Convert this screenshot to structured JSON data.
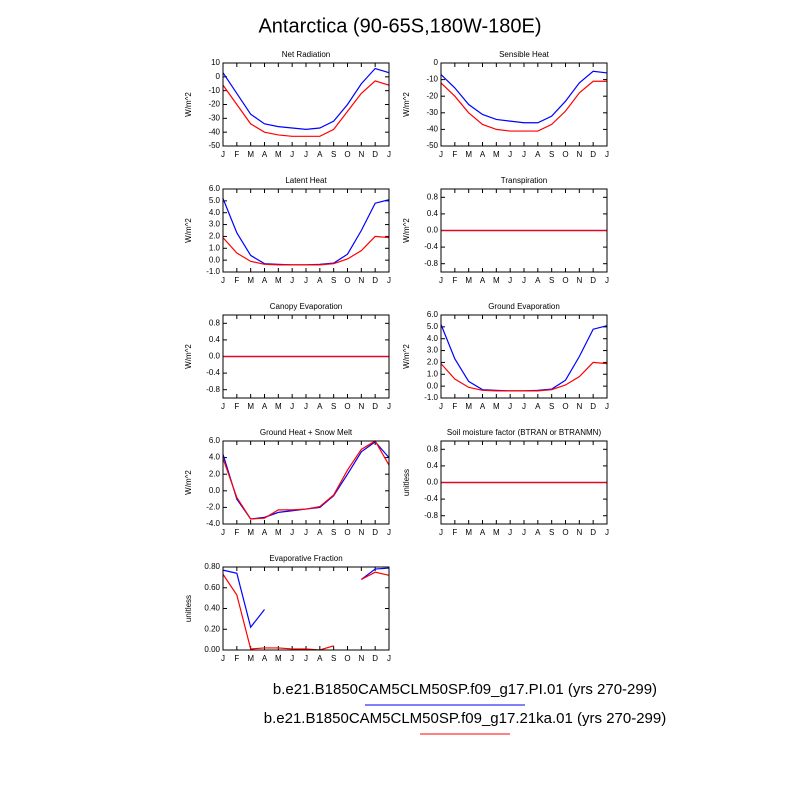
{
  "title": "Antarctica (90-65S,180W-180E)",
  "chart_data": [
    {
      "type": "line",
      "title": "Net Radiation",
      "ylabel": "W/m^2",
      "categories": [
        "J",
        "F",
        "M",
        "A",
        "M",
        "J",
        "J",
        "A",
        "S",
        "O",
        "N",
        "D",
        "J"
      ],
      "ylim": [
        -50,
        10
      ],
      "yticks": [
        10,
        0,
        -10,
        -20,
        -30,
        -40,
        -50
      ],
      "series": [
        {
          "name": "b.e21.B1850CAM5CLM50SP.f09_g17.PI.01 (yrs 270-299)",
          "color": "#0000ff",
          "values": [
            3,
            -12,
            -27,
            -34,
            -36,
            -37,
            -38,
            -37,
            -32,
            -20,
            -5,
            6,
            3
          ]
        },
        {
          "name": "b.e21.B1850CAM5CLM50SP.f09_g17.21ka.01 (yrs 270-299)",
          "color": "#ff0000",
          "values": [
            -6,
            -20,
            -34,
            -40,
            -42,
            -43,
            -43,
            -43,
            -38,
            -25,
            -12,
            -3,
            -6
          ]
        }
      ]
    },
    {
      "type": "line",
      "title": "Sensible Heat",
      "ylabel": "W/m^2",
      "categories": [
        "J",
        "F",
        "M",
        "A",
        "M",
        "J",
        "J",
        "A",
        "S",
        "O",
        "N",
        "D",
        "J"
      ],
      "ylim": [
        -50,
        0
      ],
      "yticks": [
        0,
        -10,
        -20,
        -30,
        -40,
        -50
      ],
      "series": [
        {
          "name": "b.e21.B1850CAM5CLM50SP.f09_g17.PI.01 (yrs 270-299)",
          "color": "#0000ff",
          "values": [
            -7,
            -15,
            -25,
            -31,
            -34,
            -35,
            -36,
            -36,
            -32,
            -23,
            -12,
            -5,
            -6
          ]
        },
        {
          "name": "b.e21.B1850CAM5CLM50SP.f09_g17.21ka.01 (yrs 270-299)",
          "color": "#ff0000",
          "values": [
            -12,
            -20,
            -30,
            -37,
            -40,
            -41,
            -41,
            -41,
            -37,
            -29,
            -18,
            -11,
            -11
          ]
        }
      ]
    },
    {
      "type": "line",
      "title": "Latent Heat",
      "ylabel": "W/m^2",
      "categories": [
        "J",
        "F",
        "M",
        "A",
        "M",
        "J",
        "J",
        "A",
        "S",
        "O",
        "N",
        "D",
        "J"
      ],
      "ylim": [
        -1,
        6
      ],
      "yticks": [
        {
          "value": 6,
          "label": "6.0"
        },
        {
          "value": 5,
          "label": "5.0"
        },
        {
          "value": 4,
          "label": "4.0"
        },
        {
          "value": 3,
          "label": "3.0"
        },
        {
          "value": 2,
          "label": "2.0"
        },
        {
          "value": 1,
          "label": "1.0"
        },
        {
          "value": 0,
          "label": "0.0"
        },
        {
          "value": -1,
          "label": "-1.0"
        }
      ],
      "series": [
        {
          "name": "b.e21.B1850CAM5CLM50SP.f09_g17.PI.01 (yrs 270-299)",
          "color": "#0000ff",
          "values": [
            5.2,
            2.3,
            0.4,
            -0.3,
            -0.35,
            -0.4,
            -0.4,
            -0.35,
            -0.25,
            0.5,
            2.5,
            4.8,
            5.1
          ]
        },
        {
          "name": "b.e21.B1850CAM5CLM50SP.f09_g17.21ka.01 (yrs 270-299)",
          "color": "#ff0000",
          "values": [
            1.9,
            0.6,
            -0.1,
            -0.35,
            -0.4,
            -0.4,
            -0.4,
            -0.4,
            -0.3,
            0.1,
            0.8,
            2.0,
            1.9
          ]
        }
      ]
    },
    {
      "type": "line",
      "title": "Transpiration",
      "ylabel": "W/m^2",
      "categories": [
        "J",
        "F",
        "M",
        "A",
        "M",
        "J",
        "J",
        "A",
        "S",
        "O",
        "N",
        "D",
        "J"
      ],
      "ylim": [
        -1,
        1
      ],
      "yticks": [
        0.8,
        0.4,
        {
          "value": 0,
          "label": "0.0"
        },
        -0.4,
        -0.8
      ],
      "series": [
        {
          "name": "b.e21.B1850CAM5CLM50SP.f09_g17.PI.01 (yrs 270-299)",
          "color": "#0000ff",
          "values": [
            0,
            0,
            0,
            0,
            0,
            0,
            0,
            0,
            0,
            0,
            0,
            0,
            0
          ]
        },
        {
          "name": "b.e21.B1850CAM5CLM50SP.f09_g17.21ka.01 (yrs 270-299)",
          "color": "#ff0000",
          "values": [
            0,
            0,
            0,
            0,
            0,
            0,
            0,
            0,
            0,
            0,
            0,
            0,
            0
          ]
        }
      ]
    },
    {
      "type": "line",
      "title": "Canopy Evaporation",
      "ylabel": "W/m^2",
      "categories": [
        "J",
        "F",
        "M",
        "A",
        "M",
        "J",
        "J",
        "A",
        "S",
        "O",
        "N",
        "D",
        "J"
      ],
      "ylim": [
        -1,
        1
      ],
      "yticks": [
        0.8,
        0.4,
        {
          "value": 0,
          "label": "0.0"
        },
        -0.4,
        -0.8
      ],
      "series": [
        {
          "name": "b.e21.B1850CAM5CLM50SP.f09_g17.PI.01 (yrs 270-299)",
          "color": "#0000ff",
          "values": [
            0,
            0,
            0,
            0,
            0,
            0,
            0,
            0,
            0,
            0,
            0,
            0,
            0
          ]
        },
        {
          "name": "b.e21.B1850CAM5CLM50SP.f09_g17.21ka.01 (yrs 270-299)",
          "color": "#ff0000",
          "values": [
            0,
            0,
            0,
            0,
            0,
            0,
            0,
            0,
            0,
            0,
            0,
            0,
            0
          ]
        }
      ]
    },
    {
      "type": "line",
      "title": "Ground Evaporation",
      "ylabel": "W/m^2",
      "categories": [
        "J",
        "F",
        "M",
        "A",
        "M",
        "J",
        "J",
        "A",
        "S",
        "O",
        "N",
        "D",
        "J"
      ],
      "ylim": [
        -1,
        6
      ],
      "yticks": [
        {
          "value": 6,
          "label": "6.0"
        },
        {
          "value": 5,
          "label": "5.0"
        },
        {
          "value": 4,
          "label": "4.0"
        },
        {
          "value": 3,
          "label": "3.0"
        },
        {
          "value": 2,
          "label": "2.0"
        },
        {
          "value": 1,
          "label": "1.0"
        },
        {
          "value": 0,
          "label": "0.0"
        },
        {
          "value": -1,
          "label": "-1.0"
        }
      ],
      "series": [
        {
          "name": "b.e21.B1850CAM5CLM50SP.f09_g17.PI.01 (yrs 270-299)",
          "color": "#0000ff",
          "values": [
            5.2,
            2.3,
            0.4,
            -0.3,
            -0.35,
            -0.4,
            -0.4,
            -0.35,
            -0.25,
            0.5,
            2.5,
            4.8,
            5.1
          ]
        },
        {
          "name": "b.e21.B1850CAM5CLM50SP.f09_g17.21ka.01 (yrs 270-299)",
          "color": "#ff0000",
          "values": [
            1.9,
            0.6,
            -0.1,
            -0.35,
            -0.4,
            -0.4,
            -0.4,
            -0.4,
            -0.3,
            0.1,
            0.8,
            2.0,
            1.9
          ]
        }
      ]
    },
    {
      "type": "line",
      "title": "Ground Heat + Snow Melt",
      "ylabel": "W/m^2",
      "categories": [
        "J",
        "F",
        "M",
        "A",
        "M",
        "J",
        "J",
        "A",
        "S",
        "O",
        "N",
        "D",
        "J"
      ],
      "ylim": [
        -4,
        6
      ],
      "yticks": [
        {
          "value": 6,
          "label": "6.0"
        },
        {
          "value": 4,
          "label": "4.0"
        },
        {
          "value": 2,
          "label": "2.0"
        },
        {
          "value": 0,
          "label": "0.0"
        },
        {
          "value": -2,
          "label": "-2.0"
        },
        {
          "value": -4,
          "label": "-4.0"
        }
      ],
      "series": [
        {
          "name": "b.e21.B1850CAM5CLM50SP.f09_g17.PI.01 (yrs 270-299)",
          "color": "#0000ff",
          "values": [
            4.4,
            -1.0,
            -3.4,
            -3.2,
            -2.6,
            -2.4,
            -2.2,
            -2.0,
            -0.6,
            2.0,
            4.7,
            5.9,
            4.0
          ]
        },
        {
          "name": "b.e21.B1850CAM5CLM50SP.f09_g17.21ka.01 (yrs 270-299)",
          "color": "#ff0000",
          "values": [
            3.9,
            -0.8,
            -3.4,
            -3.3,
            -2.3,
            -2.3,
            -2.2,
            -1.9,
            -0.5,
            2.5,
            5.0,
            6.0,
            3.1
          ]
        }
      ]
    },
    {
      "type": "line",
      "title": "Soil moisture factor (BTRAN or BTRANMN)",
      "ylabel": "unitless",
      "categories": [
        "J",
        "F",
        "M",
        "A",
        "M",
        "J",
        "J",
        "A",
        "S",
        "O",
        "N",
        "D",
        "J"
      ],
      "ylim": [
        -1,
        1
      ],
      "yticks": [
        0.8,
        0.4,
        {
          "value": 0,
          "label": "0.0"
        },
        -0.4,
        -0.8
      ],
      "series": [
        {
          "name": "b.e21.B1850CAM5CLM50SP.f09_g17.PI.01 (yrs 270-299)",
          "color": "#0000ff",
          "values": [
            0,
            0,
            0,
            0,
            0,
            0,
            0,
            0,
            0,
            0,
            0,
            0,
            0
          ]
        },
        {
          "name": "b.e21.B1850CAM5CLM50SP.f09_g17.21ka.01 (yrs 270-299)",
          "color": "#ff0000",
          "values": [
            0,
            0,
            0,
            0,
            0,
            0,
            0,
            0,
            0,
            0,
            0,
            0,
            0
          ]
        }
      ]
    },
    {
      "type": "line",
      "title": "Evaporative Fraction",
      "ylabel": "unitless",
      "categories": [
        "J",
        "F",
        "M",
        "A",
        "M",
        "J",
        "J",
        "A",
        "S",
        "O",
        "N",
        "D",
        "J"
      ],
      "ylim": [
        0,
        0.8
      ],
      "yticks": [
        {
          "value": 0.8,
          "label": "0.80"
        },
        {
          "value": 0.6,
          "label": "0.60"
        },
        {
          "value": 0.4,
          "label": "0.40"
        },
        {
          "value": 0.2,
          "label": "0.20"
        },
        {
          "value": 0,
          "label": "0.00"
        }
      ],
      "series": [
        {
          "name": "b.e21.B1850CAM5CLM50SP.f09_g17.PI.01 (yrs 270-299)",
          "color": "#0000ff",
          "values": [
            0.77,
            0.74,
            0.22,
            0.39,
            null,
            null,
            null,
            null,
            null,
            null,
            0.68,
            0.78,
            0.79
          ]
        },
        {
          "name": "b.e21.B1850CAM5CLM50SP.f09_g17.21ka.01 (yrs 270-299)",
          "color": "#ff0000",
          "values": [
            0.73,
            0.53,
            0.01,
            0.02,
            0.02,
            0.01,
            0.01,
            0.0,
            0.04,
            null,
            0.68,
            0.75,
            0.72
          ]
        }
      ]
    }
  ]
}
